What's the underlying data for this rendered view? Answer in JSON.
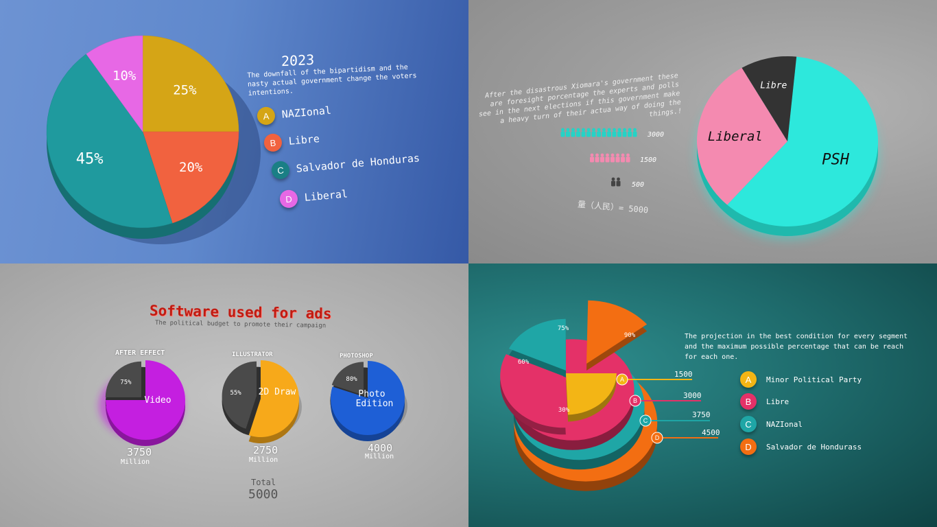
{
  "chart_data": [
    {
      "type": "pie",
      "title": "2023",
      "subtitle": "The downfall of the bipartidism and the nasty actual government change the voters intentions.",
      "slices": [
        {
          "key": "A",
          "label": "NAZIonal",
          "value": 25,
          "display": "25%",
          "color": "#d5a516"
        },
        {
          "key": "B",
          "label": "Libre",
          "value": 20,
          "display": "20%",
          "color": "#f1623f"
        },
        {
          "key": "C",
          "label": "Salvador de Honduras",
          "value": 45,
          "display": "45%",
          "color": "#1f9a9e"
        },
        {
          "key": "D",
          "label": "Liberal",
          "value": 10,
          "display": "10%",
          "color": "#e768e5"
        }
      ],
      "legend": "right"
    },
    {
      "type": "pie",
      "description": "After the disastrous Xiomara's government these are foresight porcentage the experts and polls see in the next elections if this government make a heavy turn of their actua way of doing the things.!",
      "slices": [
        {
          "label": "PSH",
          "value": 60,
          "color": "#2de8dc"
        },
        {
          "label": "Liberal",
          "value": 30,
          "color": "#f48ab0"
        },
        {
          "label": "Libre",
          "value": 10,
          "color": "#333333"
        }
      ],
      "pictogram": [
        {
          "value": 3000,
          "color": "#25d3c6",
          "icons": 15
        },
        {
          "value": 1500,
          "color": "#f48ab0",
          "icons": 8
        },
        {
          "value": 500,
          "color": "#444444",
          "icons": 2
        }
      ],
      "total_label": "量（人民）= 5000"
    },
    {
      "type": "pie",
      "title": "Software used for ads",
      "subtitle": "The political budget to promote their campaign",
      "charts": [
        {
          "caption": "AFTER EFFECT",
          "label": "Video",
          "percent": 75,
          "percent_label": "75%",
          "amount": "3750",
          "unit": "Million",
          "color": "#c41fe0"
        },
        {
          "caption": "ILLUSTRATOR",
          "label": "2D Draw",
          "percent": 55,
          "percent_label": "55%",
          "amount": "2750",
          "unit": "Million",
          "color": "#f7a91a"
        },
        {
          "caption": "PHOTOSHOP",
          "label": "Photo Edition",
          "percent": 80,
          "percent_label": "80%",
          "amount": "4000",
          "unit": "Million",
          "color": "#1e5fd6"
        }
      ],
      "total_label": "Total",
      "total_value": "5000"
    },
    {
      "type": "pie",
      "description": "The projection in the best condition for every segment and the maximum possible percentage that can be reach for each one.",
      "series": [
        {
          "key": "A",
          "label": "Minor Political Party",
          "percent": 30,
          "value": 1500,
          "color": "#f3b515"
        },
        {
          "key": "B",
          "label": "Libre",
          "percent": 60,
          "value": 3000,
          "color": "#e43168"
        },
        {
          "key": "C",
          "label": "NAZIonal",
          "percent": 75,
          "value": 3750,
          "color": "#1fa6a6"
        },
        {
          "key": "D",
          "label": "Salvador de Hondurass",
          "percent": 90,
          "value": 4500,
          "color": "#f36e12"
        }
      ]
    }
  ]
}
